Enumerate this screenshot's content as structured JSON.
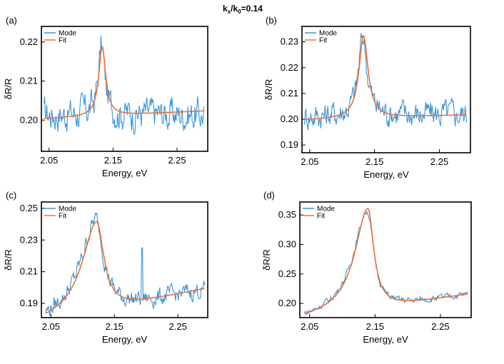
{
  "figure": {
    "title_main": "k",
    "title_sub1": "x",
    "title_mid": "/k",
    "title_sub2": "0",
    "title_tail": "=0.14"
  },
  "colors": {
    "mode": "#3a96dd",
    "fit": "#f07034",
    "axis": "#000000"
  },
  "chart_data": [
    {
      "panel": "(a)",
      "type": "line",
      "xlabel": "Energy, eV",
      "ylabel": "δR/R",
      "xlim": [
        2.038,
        2.298
      ],
      "ylim": [
        0.192,
        0.224
      ],
      "xticks": [
        2.05,
        2.15,
        2.25
      ],
      "yticks": [
        0.2,
        0.21,
        0.22
      ],
      "ytick_labels": [
        "0.20",
        "0.21",
        "0.22"
      ],
      "legend": [
        "Mode",
        "Fit"
      ],
      "mode_shape": {
        "base": 0.2015,
        "slope": 0.0,
        "amp": 0.0175,
        "center": 2.132,
        "gamma": 0.006,
        "asym": 0.0,
        "noise": 0.0035
      },
      "fit_shape": {
        "base": 0.2012,
        "slope": 0.008,
        "amp": 0.0178,
        "center": 2.133,
        "gamma": 0.0065,
        "asym": 0.0
      }
    },
    {
      "panel": "(b)",
      "type": "line",
      "xlabel": "Energy, eV",
      "ylabel": "δR/R",
      "xlim": [
        2.038,
        2.298
      ],
      "ylim": [
        0.187,
        0.236
      ],
      "xticks": [
        2.05,
        2.15,
        2.25
      ],
      "yticks": [
        0.19,
        0.2,
        0.21,
        0.22,
        0.23
      ],
      "ytick_labels": [
        "0.19",
        "0.20",
        "0.21",
        "0.22",
        "0.23"
      ],
      "legend": [
        "Mode",
        "Fit"
      ],
      "mode_shape": {
        "base": 0.2015,
        "slope": 0.004,
        "amp": 0.031,
        "center": 2.132,
        "gamma": 0.008,
        "asym": 0.0,
        "noise": 0.0045
      },
      "fit_shape": {
        "base": 0.2005,
        "slope": 0.008,
        "amp": 0.032,
        "center": 2.133,
        "gamma": 0.0085,
        "asym": 0.0
      }
    },
    {
      "panel": "(c)",
      "type": "line",
      "xlabel": "Energy, eV",
      "ylabel": "δR/R",
      "xlim": [
        2.035,
        2.297
      ],
      "ylim": [
        0.181,
        0.254
      ],
      "xticks": [
        2.05,
        2.15,
        2.25
      ],
      "yticks": [
        0.19,
        0.21,
        0.23,
        0.25
      ],
      "ytick_labels": [
        "0.19",
        "0.21",
        "0.23",
        "0.25"
      ],
      "legend": [
        "Mode",
        "Fit"
      ],
      "mode_shape": {
        "base": 0.187,
        "slope": 0.08,
        "amp": 0.058,
        "center": 2.121,
        "gamma": 0.018,
        "asym": 0.6,
        "noise": 0.0045,
        "spike_x": 2.194,
        "spike_h": 0.032
      },
      "fit_shape": {
        "base": 0.187,
        "slope": 0.085,
        "amp": 0.057,
        "center": 2.122,
        "gamma": 0.017,
        "asym": 0.6
      }
    },
    {
      "panel": "(d)",
      "type": "line",
      "xlabel": "Energy, eV",
      "ylabel": "δR/R",
      "xlim": [
        2.035,
        2.297
      ],
      "ylim": [
        0.176,
        0.372
      ],
      "xticks": [
        2.05,
        2.15,
        2.25
      ],
      "yticks": [
        0.2,
        0.25,
        0.3,
        0.35
      ],
      "ytick_labels": [
        "0.20",
        "0.25",
        "0.30",
        "0.35"
      ],
      "legend": [
        "Mode",
        "Fit"
      ],
      "mode_shape": {
        "base": 0.191,
        "slope": 0.17,
        "amp": 0.168,
        "center": 2.138,
        "gamma": 0.015,
        "asym": 0.7,
        "noise": 0.0045
      },
      "fit_shape": {
        "base": 0.191,
        "slope": 0.17,
        "amp": 0.172,
        "center": 2.139,
        "gamma": 0.014,
        "asym": 0.7
      }
    }
  ]
}
